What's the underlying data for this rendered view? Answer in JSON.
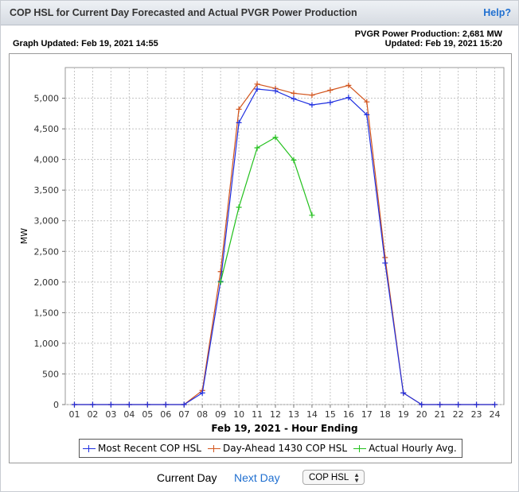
{
  "header": {
    "title": "COP HSL for Current Day Forecasted and Actual PVGR Power Production",
    "help_label": "Help?"
  },
  "info": {
    "graph_updated": "Graph Updated: Feb 19, 2021 14:55",
    "production": "PVGR Power Production: 2,681 MW",
    "production_updated": "Updated: Feb 19, 2021 15:20"
  },
  "nav": {
    "current_day": "Current Day",
    "next_day": "Next Day",
    "select_value": "COP HSL"
  },
  "colors": {
    "most_recent": "#1f2fe0",
    "day_ahead": "#d2541c",
    "actual": "#22c01c"
  },
  "chart_data": {
    "type": "line",
    "xlabel": "Feb 19, 2021 - Hour Ending",
    "ylabel": "MW",
    "categories": [
      "01",
      "02",
      "03",
      "04",
      "05",
      "06",
      "07",
      "08",
      "09",
      "10",
      "11",
      "12",
      "13",
      "14",
      "15",
      "16",
      "17",
      "18",
      "19",
      "20",
      "21",
      "22",
      "23",
      "24"
    ],
    "ylim": [
      0,
      5500
    ],
    "yticks": [
      0,
      500,
      1000,
      1500,
      2000,
      2500,
      3000,
      3500,
      4000,
      4500,
      5000
    ],
    "ytick_labels": [
      "0",
      "500",
      "1,000",
      "1,500",
      "2,000",
      "2,500",
      "3,000",
      "3,500",
      "4,000",
      "4,500",
      "5,000"
    ],
    "grid": true,
    "legend_position": "bottom",
    "series": [
      {
        "name": "Most Recent COP HSL",
        "color": "#1f2fe0",
        "values": [
          0,
          0,
          0,
          0,
          0,
          0,
          0,
          190,
          2010,
          4600,
          5150,
          5120,
          4990,
          4890,
          4930,
          5010,
          4730,
          2310,
          190,
          0,
          0,
          0,
          0,
          0
        ]
      },
      {
        "name": "Day-Ahead 1430 COP HSL",
        "color": "#d2541c",
        "values": [
          0,
          0,
          0,
          0,
          0,
          0,
          0,
          230,
          2170,
          4820,
          5230,
          5160,
          5080,
          5050,
          5130,
          5210,
          4940,
          2400,
          190,
          0,
          0,
          0,
          0,
          0
        ]
      },
      {
        "name": "Actual Hourly Avg.",
        "color": "#22c01c",
        "values": [
          null,
          null,
          null,
          null,
          null,
          null,
          null,
          null,
          2000,
          3220,
          4190,
          4360,
          3990,
          3090,
          null,
          null,
          null,
          null,
          null,
          null,
          null,
          null,
          null,
          null
        ]
      }
    ]
  }
}
